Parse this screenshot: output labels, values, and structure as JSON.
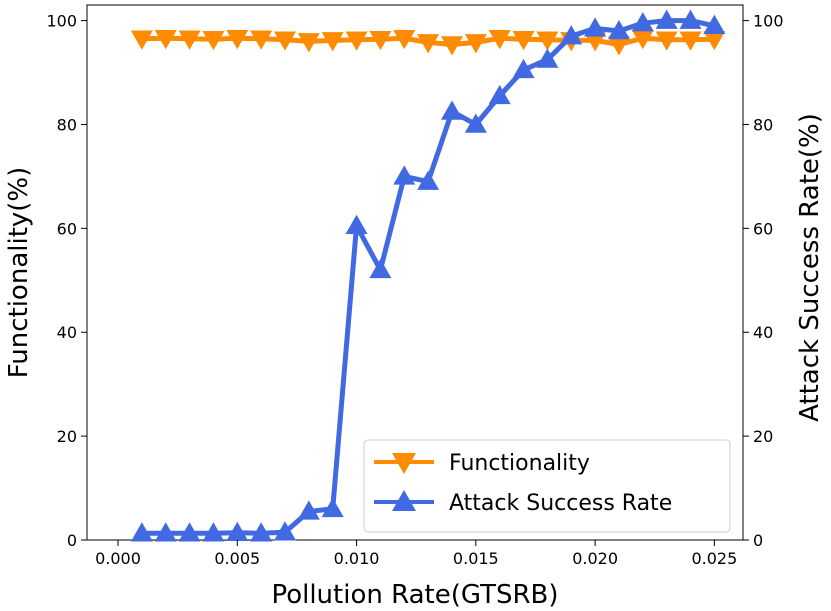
{
  "chart_data": {
    "type": "line",
    "xlabel": "Pollution Rate(GTSRB)",
    "ylabel_left": "Functionality(%)",
    "ylabel_right": "Attack Success Rate(%)",
    "xlim": [
      -0.0013,
      0.0262
    ],
    "ylim": [
      0,
      103
    ],
    "x_ticks": [
      0.0,
      0.005,
      0.01,
      0.015,
      0.02,
      0.025
    ],
    "x_tick_labels": [
      "0.000",
      "0.005",
      "0.010",
      "0.015",
      "0.020",
      "0.025"
    ],
    "y_ticks": [
      0,
      20,
      40,
      60,
      80,
      100
    ],
    "y_tick_labels": [
      "0",
      "20",
      "40",
      "60",
      "80",
      "100"
    ],
    "x": [
      0.001,
      0.002,
      0.003,
      0.004,
      0.005,
      0.006,
      0.007,
      0.008,
      0.009,
      0.01,
      0.011,
      0.012,
      0.013,
      0.014,
      0.015,
      0.016,
      0.017,
      0.018,
      0.019,
      0.02,
      0.021,
      0.022,
      0.023,
      0.024,
      0.025
    ],
    "series": [
      {
        "name": "Functionality",
        "color": "#ff8c00",
        "marker": "triangle-down",
        "axis": "left",
        "values": [
          96.5,
          96.6,
          96.5,
          96.4,
          96.6,
          96.5,
          96.3,
          96.0,
          96.2,
          96.3,
          96.4,
          96.6,
          95.8,
          95.4,
          95.8,
          96.6,
          96.4,
          96.3,
          96.2,
          96.2,
          95.4,
          96.6,
          96.3,
          96.3,
          96.4
        ]
      },
      {
        "name": "Attack Success Rate",
        "color": "#4169e1",
        "marker": "triangle-up",
        "axis": "right",
        "values": [
          1.3,
          1.3,
          1.3,
          1.3,
          1.4,
          1.3,
          1.5,
          5.5,
          6.0,
          60.5,
          52.0,
          70.0,
          69.0,
          82.5,
          80.0,
          85.5,
          90.5,
          92.5,
          97.0,
          98.5,
          98.0,
          99.5,
          100.0,
          100.0,
          99.0
        ]
      }
    ],
    "legend": [
      "Functionality",
      "Attack Success Rate"
    ],
    "legend_position": "lower-right",
    "grid": false
  }
}
